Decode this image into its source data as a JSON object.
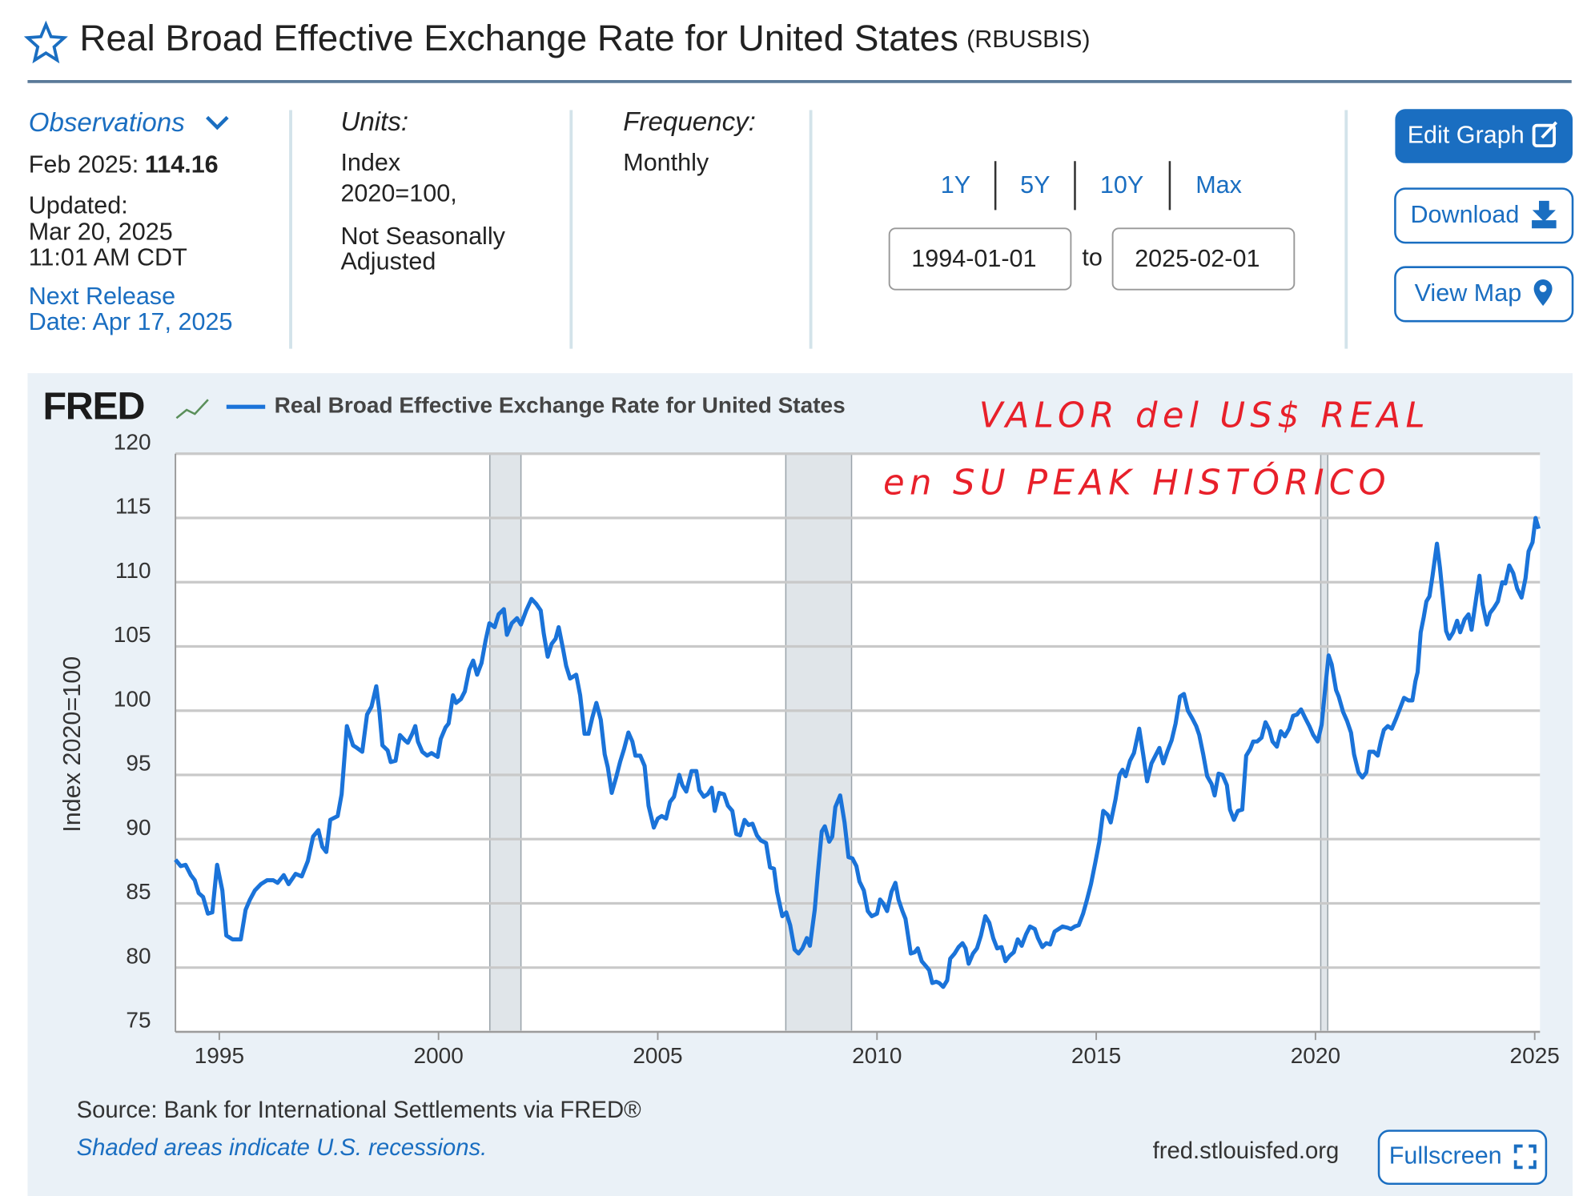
{
  "header": {
    "title": "Real Broad Effective Exchange Rate for United States",
    "series_id": "(RBUSBIS)"
  },
  "info": {
    "observations_label": "Observations",
    "latest_date": "Feb 2025:",
    "latest_value": 114.16,
    "updated_label": "Updated:",
    "updated_date": "Mar 20, 2025",
    "updated_time": "11:01 AM CDT",
    "next_release": "Next Release",
    "next_release_date": "Date: Apr 17, 2025",
    "units_label": "Units:",
    "units": [
      "Index",
      "2020=100,",
      "Not Seasonally",
      "Adjusted"
    ],
    "frequency_label": "Frequency:",
    "frequency": "Monthly"
  },
  "controls": {
    "ranges": [
      "1Y",
      "5Y",
      "10Y",
      "Max"
    ],
    "start": "1994-01-01",
    "to": "to",
    "end": "2025-02-01",
    "buttons": [
      "Edit Graph",
      "Download",
      "View Map"
    ],
    "fullscreen": "Fullscreen"
  },
  "chart_data": {
    "type": "line",
    "logo": "FRED",
    "ylabel": "Index 2020=100",
    "annotations": [
      "VALOR del US$ REAL",
      "en SU PEAK HISTÓRICO"
    ],
    "source": "Source: Bank for International Settlements via FRED®",
    "note": "Shaded areas indicate U.S. recessions.",
    "site": "fred.stlouisfed.org",
    "xlim": [
      1994.0,
      2025.12
    ],
    "ylim": [
      75,
      120
    ],
    "xticks": [
      1995,
      2000,
      2005,
      2010,
      2015,
      2020,
      2025
    ],
    "yticks": [
      75,
      80,
      85,
      90,
      95,
      100,
      105,
      110,
      115,
      120
    ],
    "grid": true,
    "recessions": [
      [
        2001.17,
        2001.88
      ],
      [
        2007.92,
        2009.42
      ],
      [
        2020.12,
        2020.28
      ]
    ],
    "x": [
      1994.0,
      1994.12,
      1994.23,
      1994.35,
      1994.44,
      1994.53,
      1994.63,
      1994.74,
      1994.84,
      1994.95,
      1995.07,
      1995.16,
      1995.3,
      1995.49,
      1995.6,
      1995.7,
      1995.81,
      1995.95,
      1996.09,
      1996.23,
      1996.33,
      1996.47,
      1996.58,
      1996.74,
      1996.88,
      1997.02,
      1997.14,
      1997.26,
      1997.35,
      1997.44,
      1997.53,
      1997.7,
      1997.79,
      1997.91,
      1998.05,
      1998.14,
      1998.26,
      1998.37,
      1998.47,
      1998.58,
      1998.65,
      1998.72,
      1998.84,
      1998.91,
      1999.02,
      1999.12,
      1999.23,
      1999.3,
      1999.4,
      1999.47,
      1999.53,
      1999.63,
      1999.74,
      1999.84,
      1999.98,
      2000.05,
      2000.16,
      2000.23,
      2000.33,
      2000.4,
      2000.51,
      2000.6,
      2000.7,
      2000.79,
      2000.88,
      2000.98,
      2001.07,
      2001.16,
      2001.28,
      2001.37,
      2001.49,
      2001.56,
      2001.67,
      2001.79,
      2001.88,
      2002.0,
      2002.12,
      2002.23,
      2002.33,
      2002.4,
      2002.49,
      2002.58,
      2002.67,
      2002.74,
      2002.84,
      2002.91,
      2003.0,
      2003.14,
      2003.23,
      2003.33,
      2003.42,
      2003.51,
      2003.6,
      2003.7,
      2003.79,
      2003.86,
      2003.95,
      2004.05,
      2004.14,
      2004.23,
      2004.33,
      2004.42,
      2004.49,
      2004.6,
      2004.7,
      2004.79,
      2004.91,
      2005.0,
      2005.09,
      2005.19,
      2005.28,
      2005.37,
      2005.49,
      2005.56,
      2005.65,
      2005.77,
      2005.88,
      2005.95,
      2006.05,
      2006.14,
      2006.23,
      2006.3,
      2006.4,
      2006.51,
      2006.6,
      2006.7,
      2006.79,
      2006.88,
      2006.98,
      2007.07,
      2007.16,
      2007.26,
      2007.35,
      2007.47,
      2007.56,
      2007.65,
      2007.72,
      2007.84,
      2007.93,
      2008.02,
      2008.12,
      2008.21,
      2008.3,
      2008.4,
      2008.47,
      2008.58,
      2008.65,
      2008.74,
      2008.81,
      2008.91,
      2008.98,
      2009.05,
      2009.16,
      2009.26,
      2009.35,
      2009.44,
      2009.53,
      2009.6,
      2009.7,
      2009.79,
      2009.88,
      2010.0,
      2010.07,
      2010.14,
      2010.23,
      2010.33,
      2010.42,
      2010.49,
      2010.58,
      2010.65,
      2010.77,
      2010.86,
      2010.93,
      2011.02,
      2011.12,
      2011.19,
      2011.26,
      2011.35,
      2011.42,
      2011.51,
      2011.6,
      2011.67,
      2011.77,
      2011.86,
      2011.95,
      2012.02,
      2012.09,
      2012.19,
      2012.28,
      2012.37,
      2012.47,
      2012.56,
      2012.65,
      2012.74,
      2012.84,
      2012.93,
      2013.02,
      2013.12,
      2013.21,
      2013.3,
      2013.4,
      2013.49,
      2013.6,
      2013.67,
      2013.77,
      2013.86,
      2013.95,
      2014.05,
      2014.14,
      2014.23,
      2014.35,
      2014.42,
      2014.51,
      2014.6,
      2014.7,
      2014.79,
      2014.88,
      2014.98,
      2015.07,
      2015.16,
      2015.26,
      2015.33,
      2015.44,
      2015.53,
      2015.6,
      2015.67,
      2015.77,
      2015.86,
      2015.98,
      2016.07,
      2016.16,
      2016.26,
      2016.35,
      2016.44,
      2016.53,
      2016.63,
      2016.72,
      2016.81,
      2016.91,
      2017.0,
      2017.09,
      2017.19,
      2017.28,
      2017.35,
      2017.44,
      2017.53,
      2017.63,
      2017.7,
      2017.79,
      2017.88,
      2017.98,
      2018.05,
      2018.14,
      2018.23,
      2018.33,
      2018.42,
      2018.51,
      2018.58,
      2018.67,
      2018.77,
      2018.86,
      2018.95,
      2019.02,
      2019.12,
      2019.21,
      2019.3,
      2019.4,
      2019.49,
      2019.58,
      2019.67,
      2019.77,
      2019.86,
      2019.95,
      2020.05,
      2020.14,
      2020.23,
      2020.3,
      2020.37,
      2020.47,
      2020.53,
      2020.63,
      2020.72,
      2020.81,
      2020.88,
      2020.98,
      2021.07,
      2021.16,
      2021.23,
      2021.33,
      2021.42,
      2021.49,
      2021.56,
      2021.65,
      2021.74,
      2021.84,
      2021.93,
      2022.02,
      2022.12,
      2022.21,
      2022.28,
      2022.33,
      2022.4,
      2022.47,
      2022.53,
      2022.6,
      2022.67,
      2022.77,
      2022.84,
      2022.91,
      2022.98,
      2023.05,
      2023.14,
      2023.23,
      2023.3,
      2023.4,
      2023.49,
      2023.56,
      2023.65,
      2023.74,
      2023.81,
      2023.91,
      2023.98,
      2024.07,
      2024.16,
      2024.26,
      2024.33,
      2024.42,
      2024.51,
      2024.6,
      2024.7,
      2024.79,
      2024.86,
      2024.95,
      2025.02,
      2025.09
    ],
    "series": [
      {
        "name": "Real Broad Effective Exchange Rate for United States",
        "color": "#1a73d9",
        "values": [
          88.4,
          87.9,
          88.0,
          87.2,
          86.8,
          85.8,
          85.5,
          84.2,
          84.3,
          88.0,
          86.0,
          82.5,
          82.2,
          82.2,
          84.5,
          85.3,
          86.0,
          86.5,
          86.8,
          86.8,
          86.6,
          87.2,
          86.5,
          87.3,
          87.1,
          88.3,
          90.2,
          90.7,
          89.4,
          89.0,
          91.5,
          91.8,
          93.5,
          98.8,
          97.3,
          97.1,
          96.8,
          99.7,
          100.3,
          101.9,
          100.0,
          97.3,
          96.9,
          96.0,
          96.1,
          98.1,
          97.7,
          97.5,
          98.2,
          98.8,
          97.6,
          96.8,
          96.5,
          96.7,
          96.4,
          97.8,
          98.7,
          99.0,
          101.2,
          100.6,
          100.9,
          101.5,
          103.2,
          103.9,
          102.8,
          103.7,
          105.4,
          106.8,
          106.5,
          107.5,
          107.9,
          105.9,
          106.8,
          107.2,
          106.7,
          107.8,
          108.7,
          108.3,
          107.8,
          106.0,
          104.2,
          105.2,
          105.6,
          106.5,
          104.8,
          103.5,
          102.5,
          102.8,
          101.2,
          98.2,
          98.2,
          99.5,
          100.6,
          99.3,
          96.6,
          95.6,
          93.6,
          94.8,
          96.0,
          97.0,
          98.3,
          97.6,
          96.5,
          96.5,
          95.7,
          92.6,
          90.9,
          91.6,
          91.8,
          91.6,
          92.9,
          93.3,
          95.0,
          94.2,
          93.7,
          95.3,
          95.3,
          93.8,
          93.3,
          93.5,
          94.0,
          92.2,
          93.6,
          93.5,
          92.6,
          92.2,
          90.4,
          90.3,
          91.5,
          91.1,
          91.2,
          90.3,
          89.9,
          89.7,
          87.8,
          87.7,
          85.9,
          84.0,
          84.3,
          83.3,
          81.4,
          81.1,
          81.5,
          82.3,
          81.7,
          84.5,
          87.3,
          90.6,
          91.0,
          89.8,
          90.2,
          92.5,
          93.4,
          91.3,
          88.6,
          88.5,
          87.9,
          86.7,
          86.0,
          84.4,
          84.0,
          84.2,
          85.3,
          85.0,
          84.4,
          85.9,
          86.6,
          85.3,
          84.4,
          83.8,
          81.1,
          81.2,
          81.5,
          80.5,
          80.1,
          79.8,
          78.8,
          78.9,
          78.8,
          78.5,
          79.0,
          80.7,
          81.1,
          81.6,
          81.9,
          81.5,
          80.3,
          81.1,
          81.5,
          82.5,
          84.0,
          83.5,
          82.3,
          81.5,
          81.6,
          80.5,
          80.9,
          81.2,
          82.2,
          81.7,
          82.6,
          83.2,
          83.0,
          82.3,
          81.6,
          81.9,
          81.8,
          82.8,
          83.0,
          83.2,
          83.1,
          83.0,
          83.2,
          83.3,
          84.2,
          85.3,
          86.5,
          88.2,
          89.8,
          92.2,
          91.9,
          91.3,
          93.1,
          95.0,
          95.4,
          94.9,
          96.1,
          96.7,
          98.6,
          96.6,
          94.5,
          95.9,
          96.5,
          97.1,
          95.9,
          96.9,
          97.7,
          99.0,
          101.1,
          101.3,
          100.0,
          99.4,
          98.8,
          98.1,
          96.6,
          94.9,
          94.3,
          93.4,
          95.1,
          95.0,
          94.2,
          92.3,
          91.5,
          92.2,
          92.3,
          96.5,
          97.0,
          97.6,
          97.6,
          97.9,
          99.1,
          98.5,
          97.6,
          97.2,
          98.4,
          98.0,
          98.6,
          99.6,
          99.7,
          100.1,
          99.4,
          98.8,
          98.1,
          97.6,
          98.9,
          102.0,
          104.3,
          103.6,
          101.6,
          101.1,
          99.9,
          99.2,
          98.3,
          96.6,
          95.2,
          94.8,
          95.2,
          96.8,
          96.8,
          96.5,
          97.6,
          98.5,
          98.8,
          98.6,
          99.4,
          100.2,
          101.0,
          100.8,
          100.8,
          102.3,
          103.0,
          106.1,
          107.3,
          108.5,
          108.9,
          110.5,
          113.0,
          111.1,
          108.7,
          106.2,
          105.6,
          106.1,
          107.0,
          106.1,
          107.1,
          107.5,
          106.3,
          108.4,
          110.5,
          108.3,
          106.7,
          107.6,
          108.0,
          108.5,
          110.0,
          109.9,
          111.3,
          110.7,
          109.5,
          108.8,
          110.3,
          112.4,
          113.1,
          115.0,
          114.16
        ]
      }
    ]
  }
}
